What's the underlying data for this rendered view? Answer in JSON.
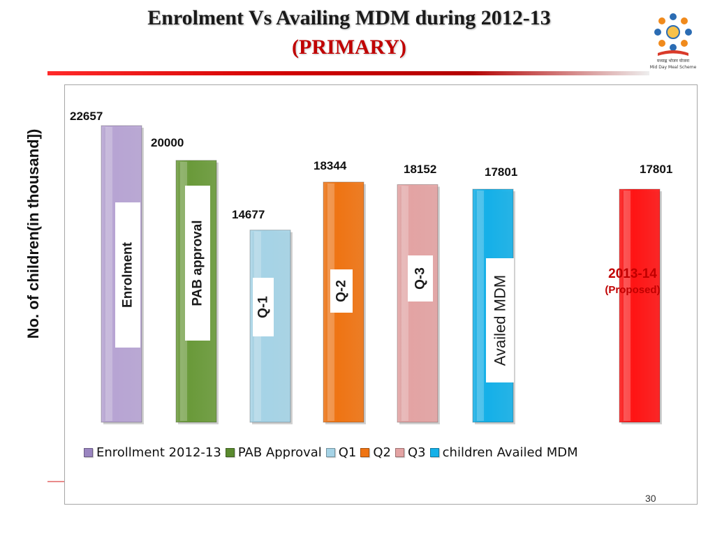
{
  "slide": {
    "title": "Enrolment Vs Availing MDM during 2012-13",
    "subtitle": "(PRIMARY)",
    "page_number": "30",
    "logo_text": [
      "मध्याह्न भोजन योजना",
      "Mid Day Meal Scheme"
    ]
  },
  "chart_data": {
    "type": "bar",
    "ylabel": "No. of children(in thousand])",
    "ylim": [
      0,
      23000
    ],
    "grid": false,
    "legend_position": "bottom",
    "categories": [
      "Enrolment",
      "PAB approval",
      "Q-1",
      "Q-2",
      "Q-3",
      "Availed MDM",
      "2013-14"
    ],
    "values": [
      22657,
      20000,
      14677,
      18344,
      18152,
      17801,
      17801
    ],
    "value_labels": [
      "22657",
      "20000",
      "14677",
      "18344",
      "18152",
      "17801",
      "17801"
    ],
    "colors": [
      "#b7a4d3",
      "#6a9a3a",
      "#a5d3e6",
      "#ef7413",
      "#e3a3a3",
      "#14b0e8",
      "#ff1414"
    ],
    "inner_labels": [
      {
        "text": "Enrolment",
        "color": "#1a1a1a"
      },
      {
        "text": "PAB approval",
        "color": "#1a1a1a"
      },
      {
        "text": "Q-1",
        "color": "#1a1a1a"
      },
      {
        "text": "Q-2",
        "color": "#1a1a1a"
      },
      {
        "text": "Q-3",
        "color": "#1a1a1a"
      },
      {
        "text": "Availed MDM",
        "color": "#1a1a1a"
      }
    ],
    "proposed_label": {
      "line1": "2013-14",
      "line2": "(Proposed)",
      "color": "#c00000"
    },
    "legend": [
      {
        "name": "Enrollment 2012-13",
        "color": "#9a85c0"
      },
      {
        "name": "PAB Approval",
        "color": "#5a8a2e"
      },
      {
        "name": "Q1",
        "color": "#a5d3e6"
      },
      {
        "name": "Q2",
        "color": "#ef7413"
      },
      {
        "name": "Q3",
        "color": "#e3a3a3"
      },
      {
        "name": "children Availed MDM",
        "color": "#14b0e8"
      }
    ]
  }
}
